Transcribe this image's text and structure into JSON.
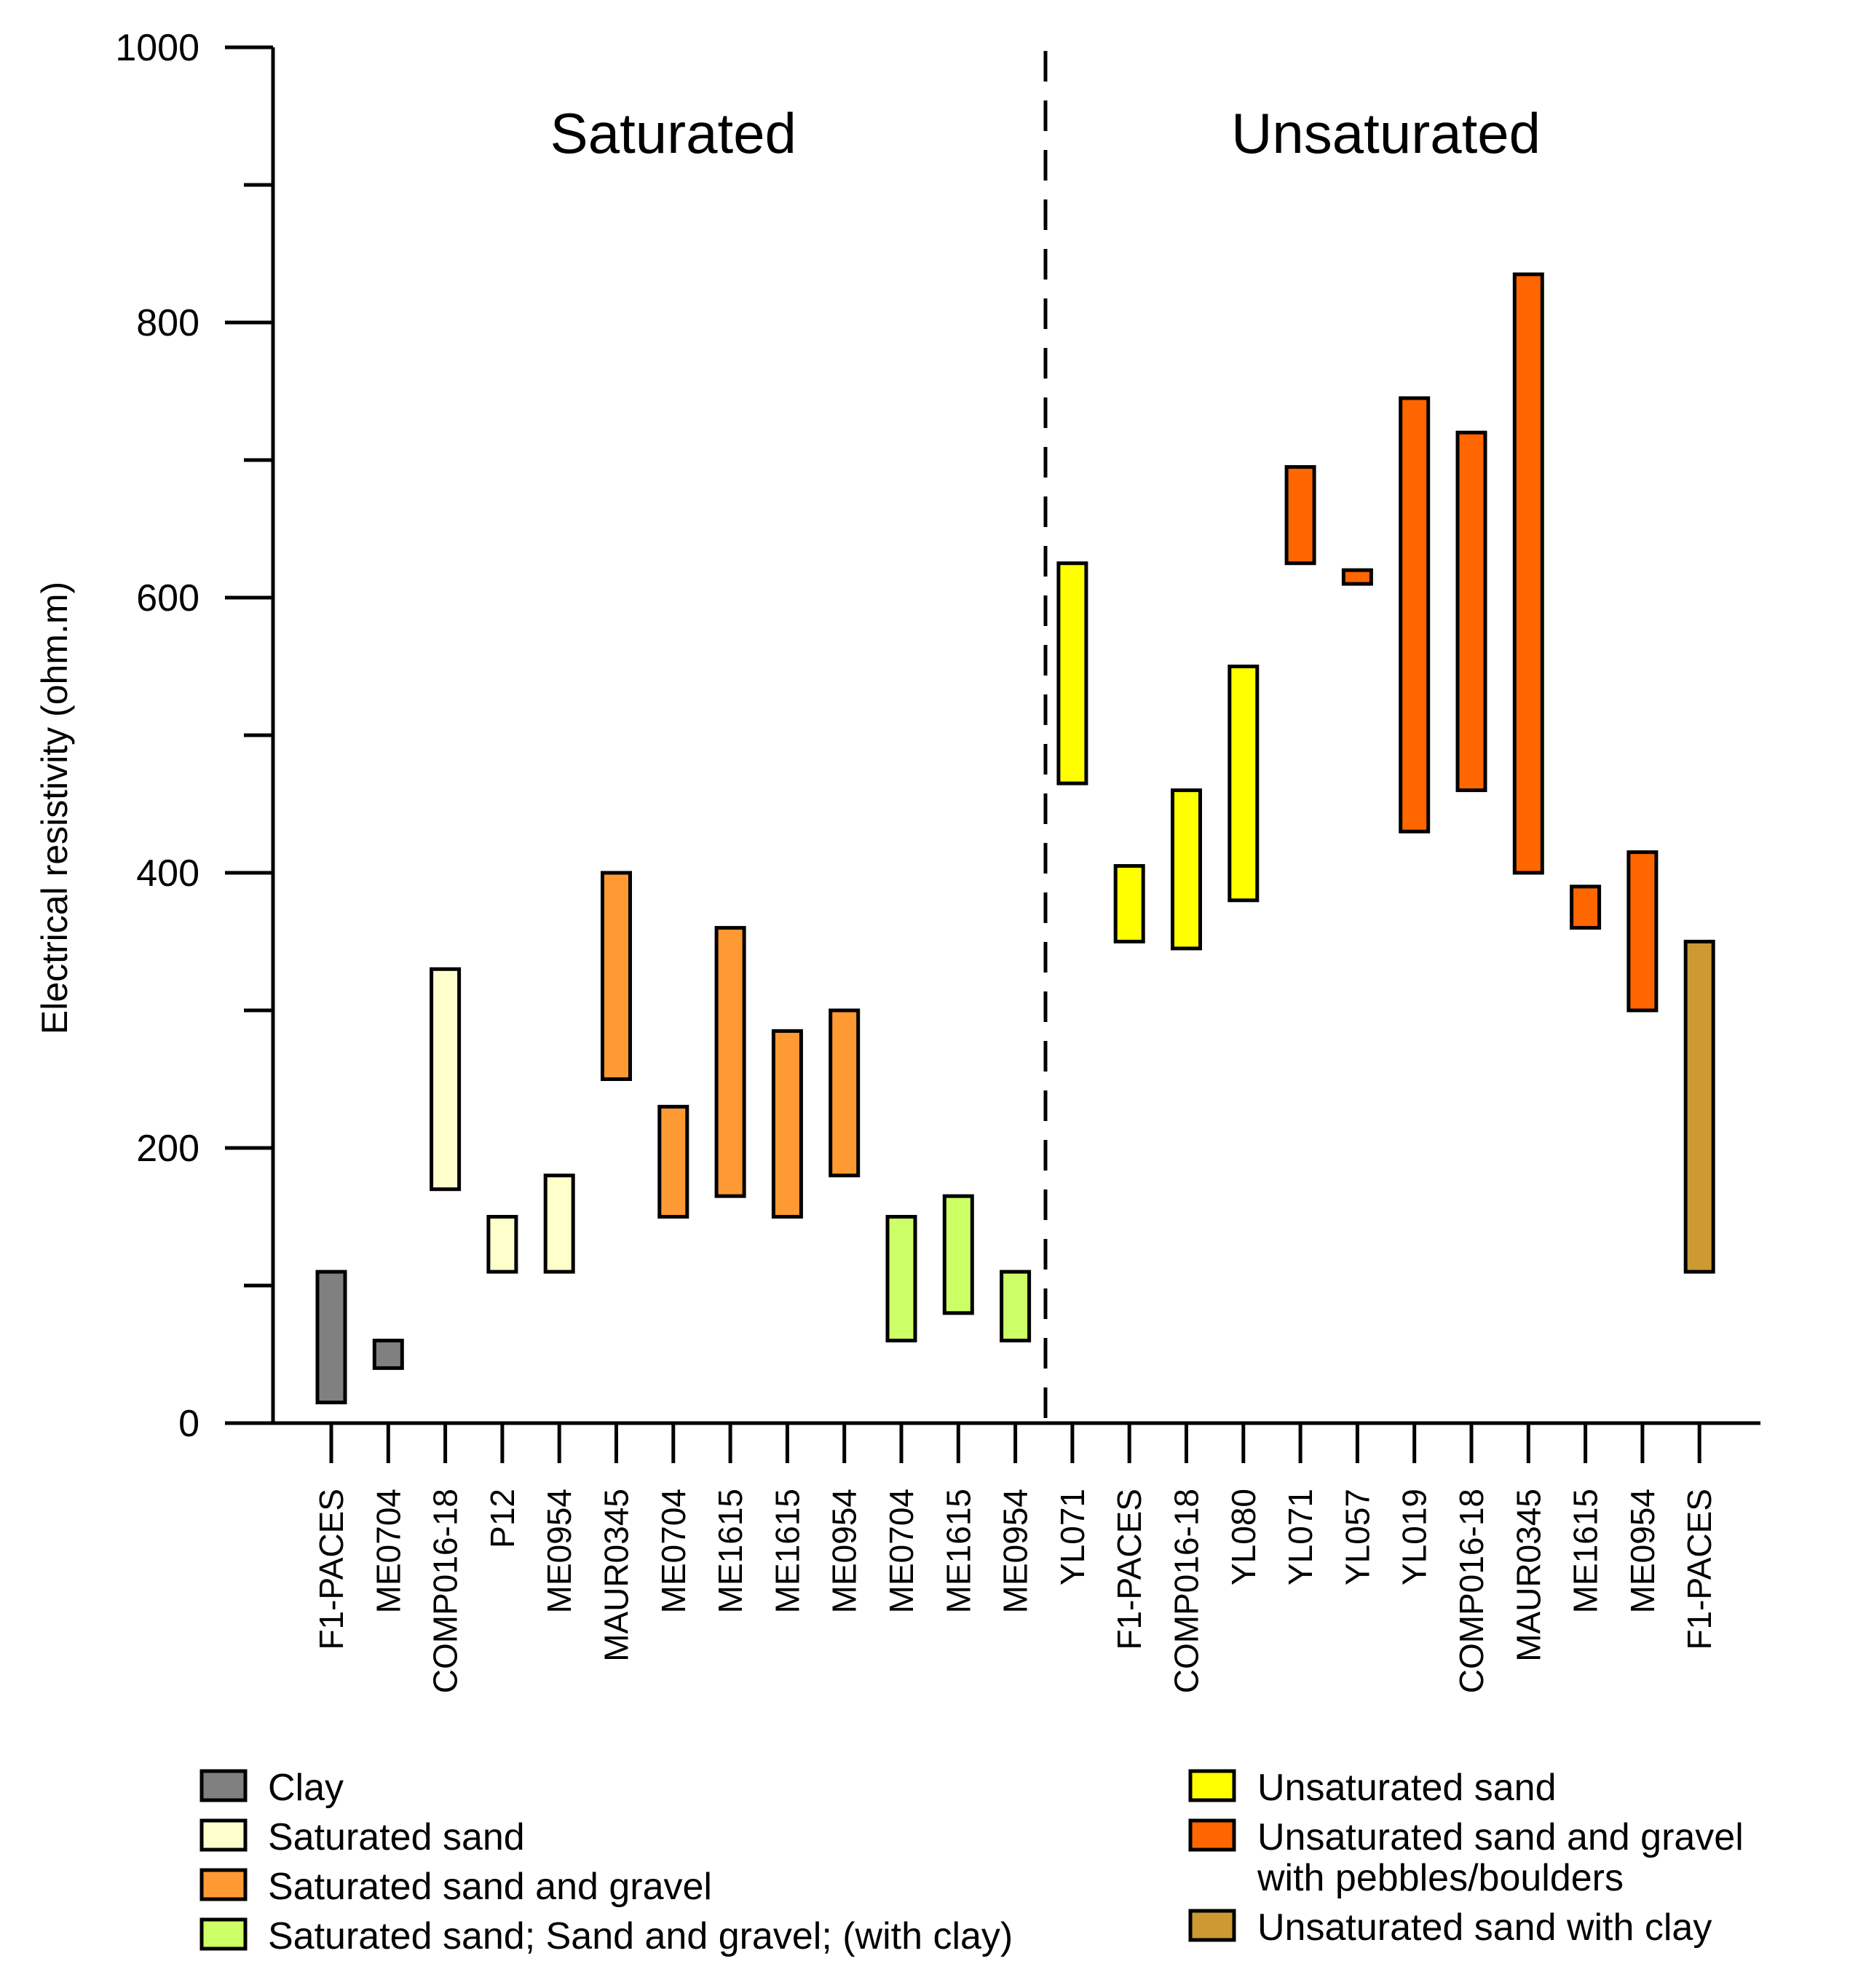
{
  "chart_data": {
    "type": "floating-bar",
    "title": "",
    "ylabel": "Electrical resistivity (ohm.m)",
    "xlabel": "",
    "ylim": [
      0,
      1000
    ],
    "yticks": [
      0,
      200,
      400,
      600,
      800,
      1000
    ],
    "yticks_minor": [
      100,
      300,
      500,
      700,
      900
    ],
    "grid": false,
    "regions": [
      {
        "label": "Saturated",
        "categories_from": 0,
        "categories_to": 12
      },
      {
        "label": "Unsaturated",
        "categories_from": 13,
        "categories_to": 24
      }
    ],
    "divider_after_index": 12,
    "bars": [
      {
        "label": "F1-PACES",
        "low": 15,
        "high": 110,
        "class": "Clay"
      },
      {
        "label": "ME0704",
        "low": 40,
        "high": 60,
        "class": "Clay"
      },
      {
        "label": "COMP016-18",
        "low": 170,
        "high": 330,
        "class": "Saturated sand"
      },
      {
        "label": "P12",
        "low": 110,
        "high": 150,
        "class": "Saturated sand"
      },
      {
        "label": "ME0954",
        "low": 110,
        "high": 180,
        "class": "Saturated sand"
      },
      {
        "label": "MAUR0345",
        "low": 250,
        "high": 400,
        "class": "Saturated sand and gravel"
      },
      {
        "label": "ME0704",
        "low": 150,
        "high": 230,
        "class": "Saturated sand and gravel"
      },
      {
        "label": "ME1615",
        "low": 165,
        "high": 360,
        "class": "Saturated sand and gravel"
      },
      {
        "label": "ME1615",
        "low": 150,
        "high": 285,
        "class": "Saturated sand and gravel"
      },
      {
        "label": "ME0954",
        "low": 180,
        "high": 300,
        "class": "Saturated sand and gravel"
      },
      {
        "label": "ME0704",
        "low": 60,
        "high": 150,
        "class": "Saturated sand; Sand and gravel; (with clay)"
      },
      {
        "label": "ME1615",
        "low": 80,
        "high": 165,
        "class": "Saturated sand; Sand and gravel; (with clay)"
      },
      {
        "label": "ME0954",
        "low": 60,
        "high": 110,
        "class": "Saturated sand; Sand and gravel; (with clay)"
      },
      {
        "label": "YL071",
        "low": 465,
        "high": 625,
        "class": "Unsaturated sand"
      },
      {
        "label": "F1-PACES",
        "low": 350,
        "high": 405,
        "class": "Unsaturated sand"
      },
      {
        "label": "COMP016-18",
        "low": 345,
        "high": 460,
        "class": "Unsaturated sand"
      },
      {
        "label": "YL080",
        "low": 380,
        "high": 550,
        "class": "Unsaturated sand"
      },
      {
        "label": "YL071",
        "low": 625,
        "high": 695,
        "class": "Unsaturated sand and gravel with pebbles/boulders"
      },
      {
        "label": "YL057",
        "low": 610,
        "high": 620,
        "class": "Unsaturated sand and gravel with pebbles/boulders"
      },
      {
        "label": "YL019",
        "low": 430,
        "high": 745,
        "class": "Unsaturated sand and gravel with pebbles/boulders"
      },
      {
        "label": "COMP016-18",
        "low": 460,
        "high": 720,
        "class": "Unsaturated sand and gravel with pebbles/boulders"
      },
      {
        "label": "MAUR0345",
        "low": 400,
        "high": 835,
        "class": "Unsaturated sand and gravel with pebbles/boulders"
      },
      {
        "label": "ME1615",
        "low": 360,
        "high": 390,
        "class": "Unsaturated sand and gravel with pebbles/boulders"
      },
      {
        "label": "ME0954",
        "low": 300,
        "high": 415,
        "class": "Unsaturated sand and gravel with pebbles/boulders"
      },
      {
        "label": "F1-PACES",
        "low": 110,
        "high": 350,
        "class": "Unsaturated sand with clay"
      }
    ],
    "legend": [
      {
        "name": "Clay",
        "lines": [
          "Clay"
        ],
        "color": "#808080",
        "column": "left"
      },
      {
        "name": "Saturated sand",
        "lines": [
          "Saturated sand"
        ],
        "color": "#FFFFCC",
        "column": "left"
      },
      {
        "name": "Saturated sand and gravel",
        "lines": [
          "Saturated sand and gravel"
        ],
        "color": "#FF9933",
        "column": "left"
      },
      {
        "name": "Saturated sand; Sand and gravel; (with clay)",
        "lines": [
          "Saturated sand; Sand and gravel; (with clay)"
        ],
        "color": "#CCFF66",
        "column": "left"
      },
      {
        "name": "Unsaturated sand",
        "lines": [
          "Unsaturated sand"
        ],
        "color": "#FFFF00",
        "column": "right"
      },
      {
        "name": "Unsaturated sand and gravel with pebbles/boulders",
        "lines": [
          "Unsaturated sand and gravel",
          "with pebbles/boulders"
        ],
        "color": "#FF6600",
        "column": "right"
      },
      {
        "name": "Unsaturated sand with clay",
        "lines": [
          "Unsaturated sand with clay"
        ],
        "color": "#CC9933",
        "column": "right"
      }
    ]
  }
}
